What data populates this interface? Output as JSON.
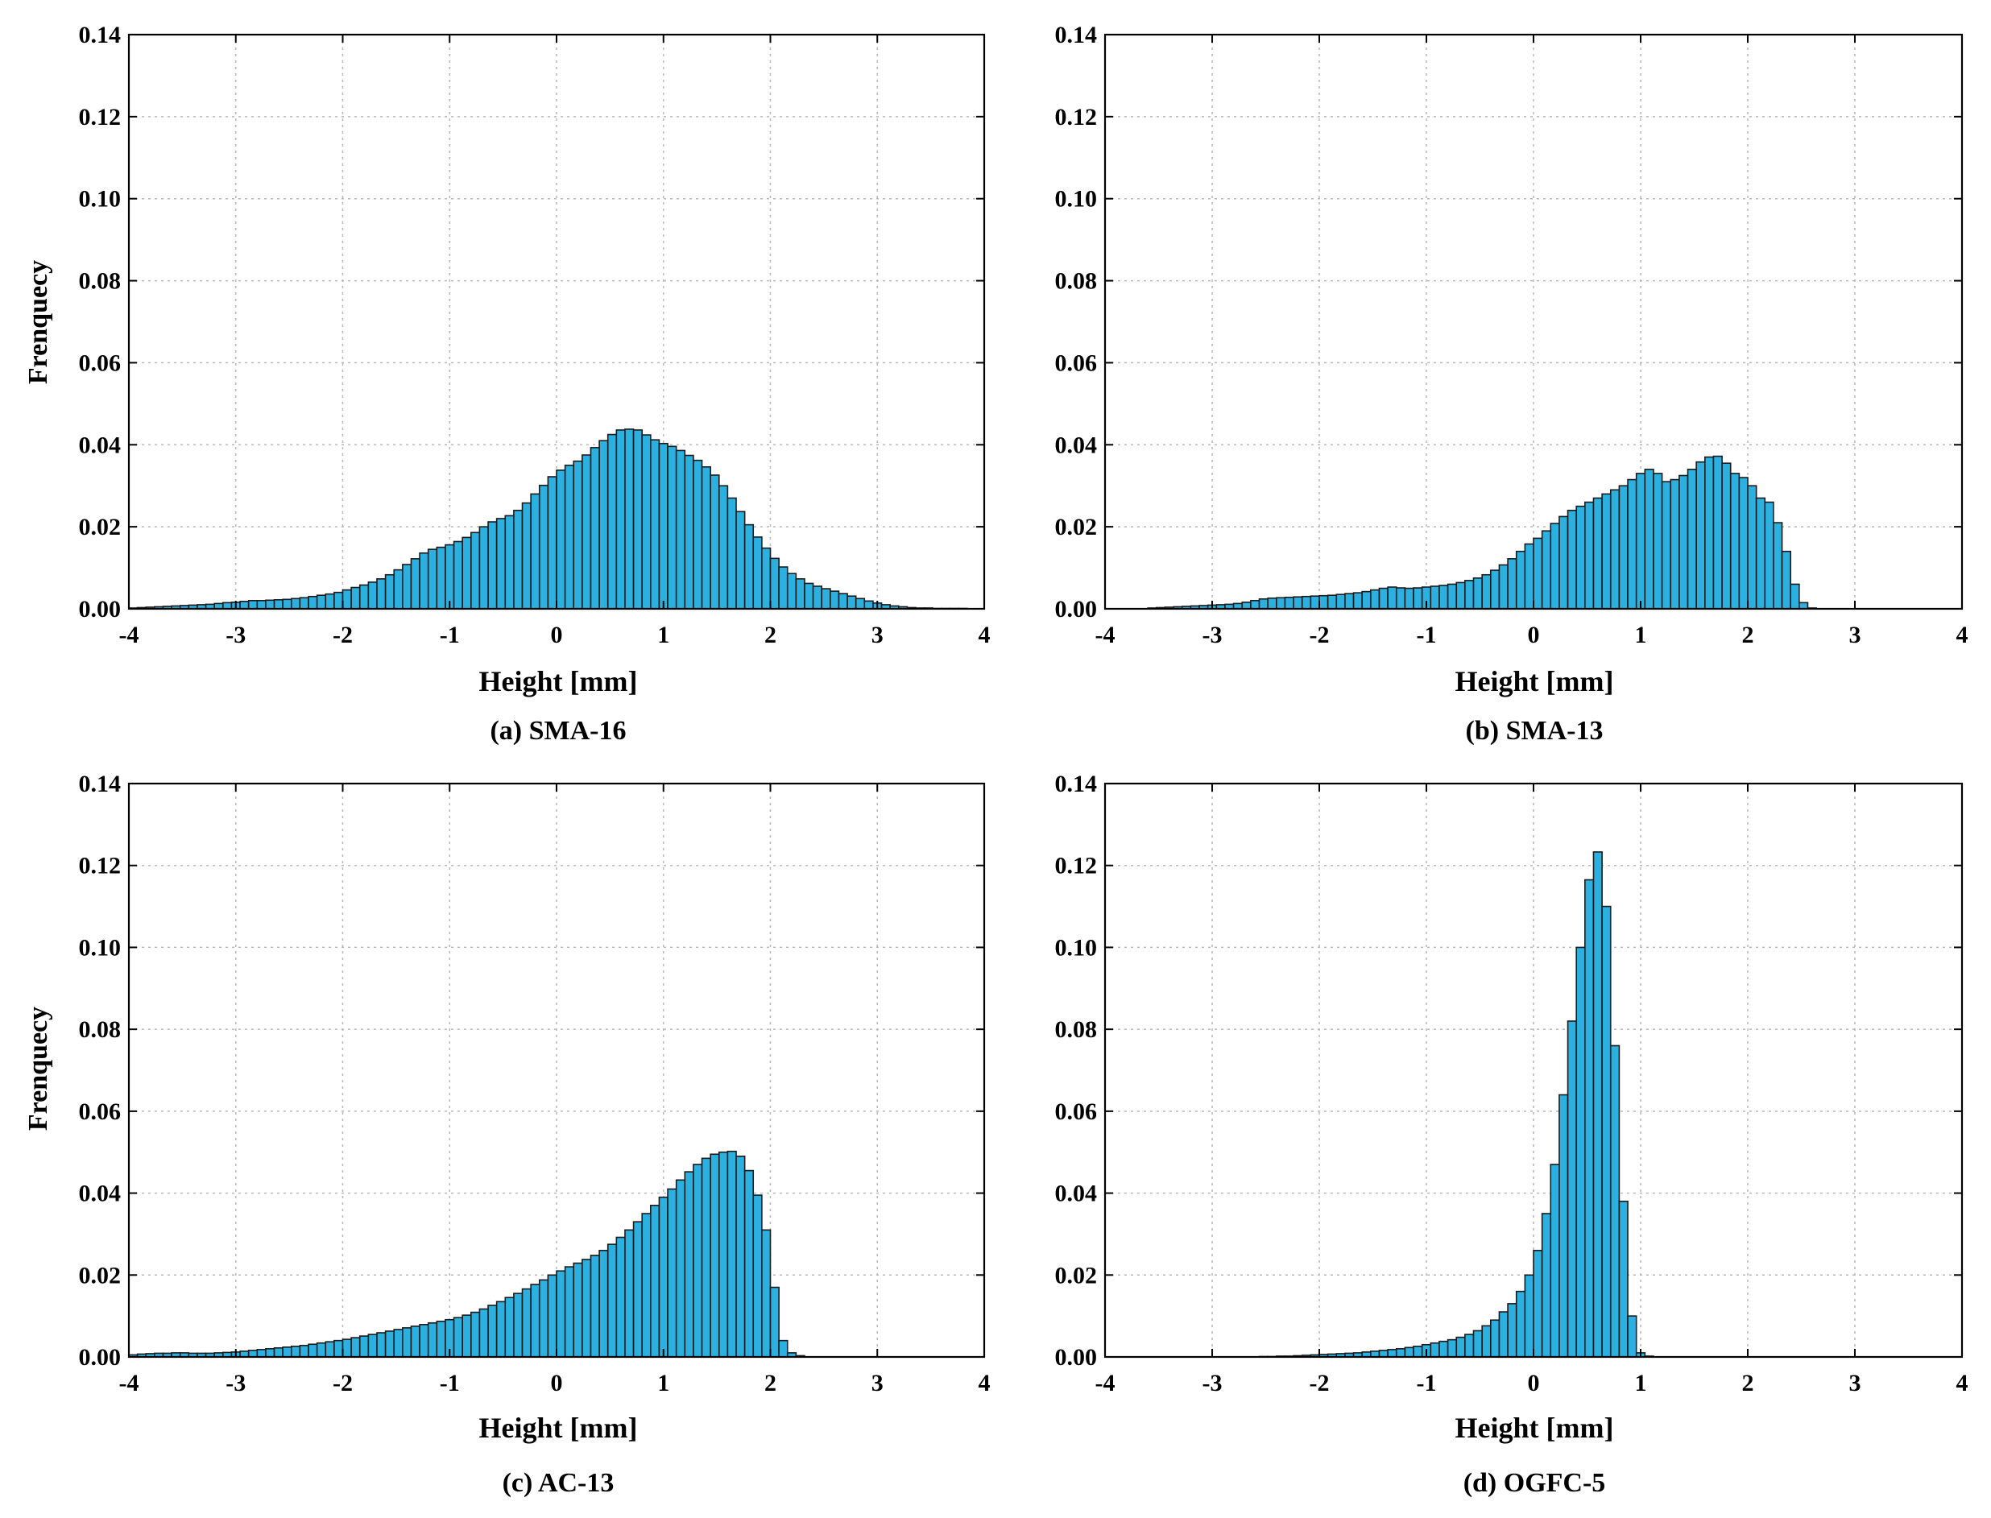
{
  "figure": {
    "bar_color": "#2bb0e0",
    "bar_edge": "#1a1a1a",
    "grid_color": "#b8b8b8"
  },
  "chart_data": [
    {
      "type": "bar",
      "title": "(a) SMA-16",
      "xlabel": "Height [mm]",
      "ylabel": "Frenquecy",
      "xlim": [
        -4,
        4
      ],
      "ylim": [
        0,
        0.14
      ],
      "xticks": [
        "-4",
        "-3",
        "-2",
        "-1",
        "0",
        "1",
        "2",
        "3",
        "4"
      ],
      "yticks": [
        "0.00",
        "0.02",
        "0.04",
        "0.06",
        "0.08",
        "0.10",
        "0.12",
        "0.14"
      ],
      "grid": true,
      "bin_start": -4.0,
      "bin_width": 0.08,
      "values": [
        0.0002,
        0.0003,
        0.0004,
        0.0005,
        0.0006,
        0.0007,
        0.0008,
        0.0009,
        0.001,
        0.0011,
        0.0013,
        0.0015,
        0.0016,
        0.0018,
        0.002,
        0.002,
        0.0021,
        0.0022,
        0.0023,
        0.0025,
        0.0027,
        0.003,
        0.0033,
        0.0036,
        0.004,
        0.0046,
        0.0052,
        0.0058,
        0.0065,
        0.0073,
        0.0083,
        0.0095,
        0.0108,
        0.0122,
        0.0136,
        0.0145,
        0.015,
        0.0156,
        0.0164,
        0.0174,
        0.0186,
        0.02,
        0.0212,
        0.022,
        0.0227,
        0.024,
        0.0258,
        0.028,
        0.0301,
        0.0322,
        0.0338,
        0.035,
        0.036,
        0.0375,
        0.0393,
        0.041,
        0.0425,
        0.0436,
        0.0438,
        0.0436,
        0.0424,
        0.0412,
        0.0403,
        0.0396,
        0.0386,
        0.0374,
        0.0362,
        0.0346,
        0.0326,
        0.03,
        0.027,
        0.0237,
        0.0205,
        0.0175,
        0.0148,
        0.0123,
        0.0102,
        0.0086,
        0.0073,
        0.0062,
        0.0055,
        0.0049,
        0.0043,
        0.0037,
        0.0031,
        0.0025,
        0.0019,
        0.0014,
        0.001,
        0.0007,
        0.0005,
        0.0003,
        0.0002,
        0.0002,
        0.0001,
        0.0001,
        0.0001,
        0.0001,
        0,
        0,
        0
      ]
    },
    {
      "type": "bar",
      "title": "(b) SMA-13",
      "xlabel": "Height [mm]",
      "ylabel": "",
      "xlim": [
        -4,
        4
      ],
      "ylim": [
        0,
        0.14
      ],
      "xticks": [
        "-4",
        "-3",
        "-2",
        "-1",
        "0",
        "1",
        "2",
        "3",
        "4"
      ],
      "yticks": [
        "0.00",
        "0.02",
        "0.04",
        "0.06",
        "0.08",
        "0.10",
        "0.12",
        "0.14"
      ],
      "grid": true,
      "bin_start": -4.0,
      "bin_width": 0.08,
      "values": [
        0,
        0,
        0,
        0,
        0,
        0.0002,
        0.0003,
        0.0004,
        0.0005,
        0.0006,
        0.0007,
        0.0008,
        0.0009,
        0.001,
        0.0011,
        0.0013,
        0.0016,
        0.002,
        0.0024,
        0.0026,
        0.0027,
        0.0028,
        0.0029,
        0.003,
        0.0031,
        0.0032,
        0.0033,
        0.0035,
        0.0037,
        0.0039,
        0.0042,
        0.0046,
        0.005,
        0.0053,
        0.0051,
        0.005,
        0.0051,
        0.0053,
        0.0055,
        0.0057,
        0.006,
        0.0064,
        0.0069,
        0.0075,
        0.0083,
        0.0094,
        0.0107,
        0.0122,
        0.014,
        0.0158,
        0.0172,
        0.019,
        0.0208,
        0.0225,
        0.024,
        0.025,
        0.026,
        0.027,
        0.028,
        0.029,
        0.03,
        0.0315,
        0.033,
        0.034,
        0.033,
        0.031,
        0.0315,
        0.0325,
        0.034,
        0.0358,
        0.037,
        0.0372,
        0.0355,
        0.033,
        0.032,
        0.03,
        0.027,
        0.026,
        0.021,
        0.014,
        0.006,
        0.0015,
        0.0002,
        0,
        0,
        0,
        0,
        0,
        0,
        0,
        0,
        0,
        0,
        0,
        0,
        0,
        0,
        0,
        0,
        0,
        0
      ]
    },
    {
      "type": "bar",
      "title": "(c) AC-13",
      "xlabel": "Height [mm]",
      "ylabel": "Frenquecy",
      "xlim": [
        -4,
        4
      ],
      "ylim": [
        0,
        0.14
      ],
      "xticks": [
        "-4",
        "-3",
        "-2",
        "-1",
        "0",
        "1",
        "2",
        "3",
        "4"
      ],
      "yticks": [
        "0.00",
        "0.02",
        "0.04",
        "0.06",
        "0.08",
        "0.10",
        "0.12",
        "0.14"
      ],
      "grid": true,
      "bin_start": -4.0,
      "bin_width": 0.08,
      "values": [
        0.0005,
        0.0007,
        0.0008,
        0.0009,
        0.0009,
        0.001,
        0.001,
        0.0009,
        0.0009,
        0.0009,
        0.001,
        0.0011,
        0.0012,
        0.0014,
        0.0016,
        0.0018,
        0.002,
        0.0022,
        0.0024,
        0.0026,
        0.0028,
        0.0031,
        0.0034,
        0.0037,
        0.004,
        0.0043,
        0.0047,
        0.0051,
        0.0055,
        0.0059,
        0.0063,
        0.0067,
        0.0071,
        0.0075,
        0.0079,
        0.0083,
        0.0087,
        0.0091,
        0.0096,
        0.0102,
        0.0109,
        0.0117,
        0.0126,
        0.0135,
        0.0145,
        0.0155,
        0.0166,
        0.0177,
        0.0188,
        0.02,
        0.021,
        0.022,
        0.0229,
        0.0238,
        0.0248,
        0.026,
        0.0275,
        0.0292,
        0.031,
        0.033,
        0.035,
        0.037,
        0.039,
        0.041,
        0.0432,
        0.0452,
        0.047,
        0.0485,
        0.0495,
        0.05,
        0.0502,
        0.049,
        0.0455,
        0.0395,
        0.031,
        0.017,
        0.004,
        0.001,
        0.0003,
        0,
        0,
        0,
        0,
        0,
        0,
        0,
        0,
        0,
        0,
        0,
        0,
        0,
        0,
        0,
        0,
        0,
        0,
        0,
        0,
        0
      ]
    },
    {
      "type": "bar",
      "title": "(d) OGFC-5",
      "xlabel": "Height [mm]",
      "ylabel": "",
      "xlim": [
        -4,
        4
      ],
      "ylim": [
        0,
        0.14
      ],
      "xticks": [
        "-4",
        "-3",
        "-2",
        "-1",
        "0",
        "1",
        "2",
        "3",
        "4"
      ],
      "yticks": [
        "0.00",
        "0.02",
        "0.04",
        "0.06",
        "0.08",
        "0.10",
        "0.12",
        "0.14"
      ],
      "grid": true,
      "bin_start": -4.0,
      "bin_width": 0.08,
      "values": [
        0,
        0,
        0,
        0,
        0,
        0,
        0,
        0,
        0,
        0,
        0,
        0,
        0,
        0,
        0,
        0,
        0,
        0,
        0.0001,
        0.0001,
        0.0002,
        0.0002,
        0.0003,
        0.0004,
        0.0005,
        0.0006,
        0.0007,
        0.0008,
        0.0009,
        0.001,
        0.0012,
        0.0014,
        0.0016,
        0.0018,
        0.002,
        0.0023,
        0.0026,
        0.003,
        0.0034,
        0.0038,
        0.0042,
        0.0048,
        0.0055,
        0.0064,
        0.0076,
        0.009,
        0.011,
        0.013,
        0.016,
        0.02,
        0.026,
        0.035,
        0.047,
        0.064,
        0.082,
        0.1,
        0.1165,
        0.1233,
        0.11,
        0.076,
        0.038,
        0.01,
        0.001,
        0.0002,
        0,
        0,
        0,
        0,
        0,
        0,
        0,
        0,
        0,
        0,
        0,
        0,
        0,
        0,
        0,
        0,
        0,
        0,
        0,
        0,
        0,
        0,
        0,
        0,
        0,
        0,
        0,
        0,
        0,
        0,
        0,
        0,
        0,
        0,
        0,
        0
      ]
    }
  ]
}
